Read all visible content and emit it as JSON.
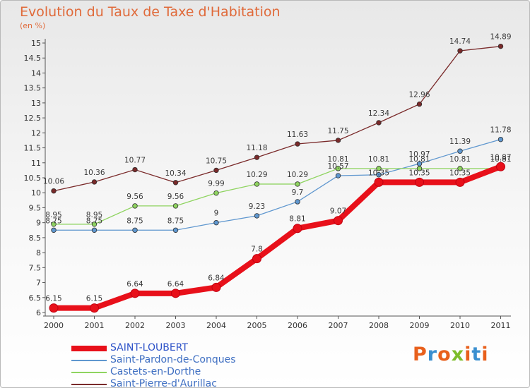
{
  "chart_data": {
    "type": "line",
    "title": "Evolution du Taux de Taxe d'Habitation",
    "unit_label": "(en %)",
    "x": [
      "2000",
      "2001",
      "2002",
      "2003",
      "2004",
      "2005",
      "2006",
      "2007",
      "2008",
      "2009",
      "2010",
      "2011"
    ],
    "ylim": [
      6,
      15
    ],
    "yticks": [
      "6",
      "6.5",
      "7",
      "7.5",
      "8",
      "8.5",
      "9",
      "9.5",
      "10",
      "10.5",
      "11",
      "11.5",
      "12",
      "12.5",
      "13",
      "13.5",
      "14",
      "14.5",
      "15"
    ],
    "grid": false,
    "legend_position": "bottom-left",
    "series": [
      {
        "name": "SAINT-LOUBERT",
        "color": "#e8101a",
        "values": [
          6.15,
          6.15,
          6.64,
          6.64,
          6.84,
          7.8,
          8.81,
          9.07,
          10.35,
          10.35,
          10.35,
          10.87
        ],
        "labels": [
          "6.15",
          "6.15",
          "6.64",
          "6.64",
          "6.84",
          "7.8",
          "8.81",
          "9.07",
          "10.35",
          "10.35",
          "10.35",
          "10.87"
        ],
        "thick": true
      },
      {
        "name": "Saint-Pardon-de-Conques",
        "color": "#5f97cf",
        "values": [
          8.75,
          8.75,
          8.75,
          8.75,
          9,
          9.23,
          9.7,
          10.57,
          10.6,
          10.97,
          11.39,
          11.78
        ],
        "labels": [
          "8.75",
          "8.75",
          "8.75",
          "8.75",
          "9",
          "9.23",
          "9.7",
          "10.57",
          "",
          "10.97",
          "11.39",
          "11.78"
        ]
      },
      {
        "name": "Castets-en-Dorthe",
        "color": "#8fd460",
        "values": [
          8.95,
          8.95,
          9.56,
          9.56,
          9.99,
          10.29,
          10.29,
          10.81,
          10.81,
          10.81,
          10.81,
          10.81
        ],
        "labels": [
          "8.95",
          "8.95",
          "9.56",
          "9.56",
          "9.99",
          "10.29",
          "10.29",
          "10.81",
          "10.81",
          "10.81",
          "10.81",
          "10.81"
        ]
      },
      {
        "name": "Saint-Pierre-d'Aurillac",
        "color": "#7a2a2a",
        "values": [
          10.06,
          10.36,
          10.77,
          10.34,
          10.75,
          11.18,
          11.63,
          11.75,
          12.34,
          12.96,
          14.74,
          14.89
        ],
        "labels": [
          "10.06",
          "10.36",
          "10.77",
          "10.34",
          "10.75",
          "11.18",
          "11.63",
          "11.75",
          "12.34",
          "12.96",
          "14.74",
          "14.89"
        ]
      }
    ]
  },
  "brand": {
    "letters": [
      "P",
      "r",
      "o",
      "x",
      "i",
      "t",
      "i"
    ],
    "colors": [
      "#e8601c",
      "#3a8fd0",
      "#e8601c",
      "#7dbd2a",
      "#e8601c",
      "#3a8fd0",
      "#e8601c"
    ]
  }
}
